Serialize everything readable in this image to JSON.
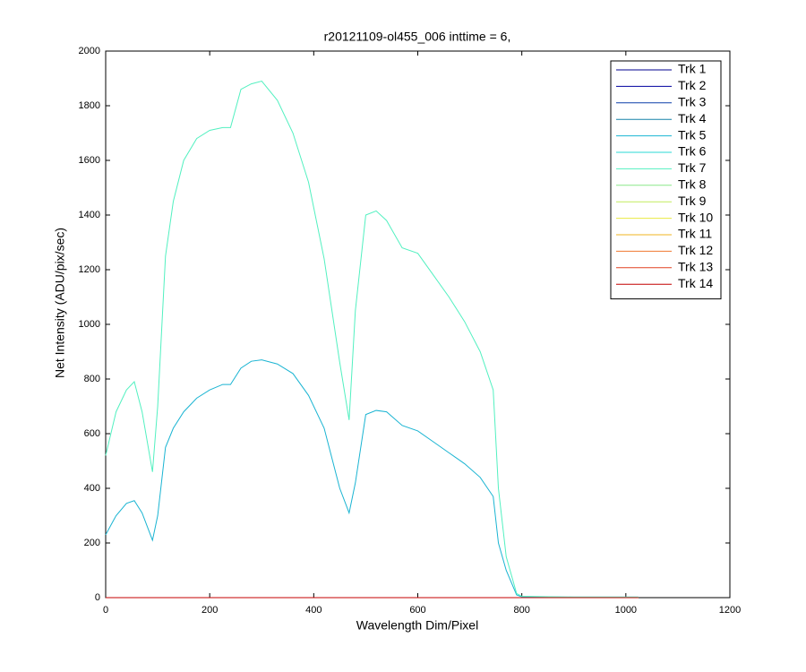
{
  "chart_data": {
    "type": "line",
    "title": "r20121109-ol455_006 inttime = 6,",
    "x_label": "Wavelength Dim/Pixel",
    "y_label": "Net Intensity (ADU/pix/sec)",
    "xlim": [
      0,
      1200
    ],
    "xticks": [
      0,
      200,
      400,
      600,
      800,
      1000,
      1200
    ],
    "ylim": [
      0,
      2000
    ],
    "yticks": [
      0,
      200,
      400,
      600,
      800,
      1000,
      1200,
      1400,
      1600,
      1800,
      2000
    ],
    "legend": "upper right",
    "x": [
      0,
      20,
      40,
      55,
      70,
      90,
      100,
      115,
      130,
      150,
      175,
      200,
      225,
      240,
      260,
      280,
      300,
      330,
      360,
      390,
      420,
      450,
      468,
      480,
      500,
      520,
      540,
      570,
      600,
      630,
      660,
      690,
      720,
      745,
      755,
      770,
      790,
      800,
      900,
      1024
    ],
    "series": [
      {
        "name": "Trk 1",
        "color": "#00008f",
        "values": [
          0,
          0,
          0,
          0,
          0,
          0,
          0,
          0,
          0,
          0,
          0,
          0,
          0,
          0,
          0,
          0,
          0,
          0,
          0,
          0,
          0,
          0,
          0,
          0,
          0,
          0,
          0,
          0,
          0,
          0,
          0,
          0,
          0,
          0,
          0,
          0,
          0,
          0,
          0,
          0
        ]
      },
      {
        "name": "Trk 2",
        "color": "#00009f",
        "values": [
          0,
          0,
          0,
          0,
          0,
          0,
          0,
          0,
          0,
          0,
          0,
          0,
          0,
          0,
          0,
          0,
          0,
          0,
          0,
          0,
          0,
          0,
          0,
          0,
          0,
          0,
          0,
          0,
          0,
          0,
          0,
          0,
          0,
          0,
          0,
          0,
          0,
          0,
          0,
          0
        ]
      },
      {
        "name": "Trk 3",
        "color": "#0a3ea8",
        "values": [
          0,
          0,
          0,
          0,
          0,
          0,
          0,
          0,
          0,
          0,
          0,
          0,
          0,
          0,
          0,
          0,
          0,
          0,
          0,
          0,
          0,
          0,
          0,
          0,
          0,
          0,
          0,
          0,
          0,
          0,
          0,
          0,
          0,
          0,
          0,
          0,
          0,
          0,
          0,
          0
        ]
      },
      {
        "name": "Trk 4",
        "color": "#1682a8",
        "values": [
          0,
          0,
          0,
          0,
          0,
          0,
          0,
          0,
          0,
          0,
          0,
          0,
          0,
          0,
          0,
          0,
          0,
          0,
          0,
          0,
          0,
          0,
          0,
          0,
          0,
          0,
          0,
          0,
          0,
          0,
          0,
          0,
          0,
          0,
          0,
          0,
          0,
          0,
          0,
          0
        ]
      },
      {
        "name": "Trk 5",
        "color": "#1ab4d2",
        "values": [
          230,
          300,
          345,
          355,
          310,
          210,
          300,
          550,
          620,
          680,
          730,
          760,
          780,
          780,
          840,
          865,
          870,
          855,
          820,
          740,
          620,
          400,
          310,
          420,
          670,
          685,
          680,
          630,
          610,
          570,
          530,
          490,
          440,
          370,
          200,
          100,
          10,
          3,
          2,
          2
        ]
      },
      {
        "name": "Trk 6",
        "color": "#2ad8d4",
        "values": [
          0,
          0,
          0,
          0,
          0,
          0,
          0,
          0,
          0,
          0,
          0,
          0,
          0,
          0,
          0,
          0,
          0,
          0,
          0,
          0,
          0,
          0,
          0,
          0,
          0,
          0,
          0,
          0,
          0,
          0,
          0,
          0,
          0,
          0,
          0,
          0,
          0,
          0,
          0,
          0
        ]
      },
      {
        "name": "Trk 7",
        "color": "#52f0c0",
        "values": [
          520,
          680,
          760,
          790,
          680,
          460,
          700,
          1250,
          1450,
          1600,
          1680,
          1710,
          1720,
          1720,
          1860,
          1880,
          1890,
          1820,
          1700,
          1520,
          1240,
          860,
          650,
          1050,
          1400,
          1415,
          1380,
          1280,
          1260,
          1180,
          1100,
          1010,
          900,
          760,
          400,
          150,
          15,
          5,
          2,
          2
        ]
      },
      {
        "name": "Trk 8",
        "color": "#8ae888",
        "values": [
          0,
          0,
          0,
          0,
          0,
          0,
          0,
          0,
          0,
          0,
          0,
          0,
          0,
          0,
          0,
          0,
          0,
          0,
          0,
          0,
          0,
          0,
          0,
          0,
          0,
          0,
          0,
          0,
          0,
          0,
          0,
          0,
          0,
          0,
          0,
          0,
          0,
          0,
          0,
          0
        ]
      },
      {
        "name": "Trk 9",
        "color": "#c2ec5c",
        "values": [
          0,
          0,
          0,
          0,
          0,
          0,
          0,
          0,
          0,
          0,
          0,
          0,
          0,
          0,
          0,
          0,
          0,
          0,
          0,
          0,
          0,
          0,
          0,
          0,
          0,
          0,
          0,
          0,
          0,
          0,
          0,
          0,
          0,
          0,
          0,
          0,
          0,
          0,
          0,
          0
        ]
      },
      {
        "name": "Trk 10",
        "color": "#eaea40",
        "values": [
          0,
          0,
          0,
          0,
          0,
          0,
          0,
          0,
          0,
          0,
          0,
          0,
          0,
          0,
          0,
          0,
          0,
          0,
          0,
          0,
          0,
          0,
          0,
          0,
          0,
          0,
          0,
          0,
          0,
          0,
          0,
          0,
          0,
          0,
          0,
          0,
          0,
          0,
          0,
          0
        ]
      },
      {
        "name": "Trk 11",
        "color": "#f0b420",
        "values": [
          0,
          0,
          0,
          0,
          0,
          0,
          0,
          0,
          0,
          0,
          0,
          0,
          0,
          0,
          0,
          0,
          0,
          0,
          0,
          0,
          0,
          0,
          0,
          0,
          0,
          0,
          0,
          0,
          0,
          0,
          0,
          0,
          0,
          0,
          0,
          0,
          0,
          0,
          0,
          0
        ]
      },
      {
        "name": "Trk 12",
        "color": "#f07830",
        "values": [
          0,
          0,
          0,
          0,
          0,
          0,
          0,
          0,
          0,
          0,
          0,
          0,
          0,
          0,
          0,
          0,
          0,
          0,
          0,
          0,
          0,
          0,
          0,
          0,
          0,
          0,
          0,
          0,
          0,
          0,
          0,
          0,
          0,
          0,
          0,
          0,
          0,
          0,
          0,
          0
        ]
      },
      {
        "name": "Trk 13",
        "color": "#e04020",
        "values": [
          0,
          0,
          0,
          0,
          0,
          0,
          0,
          0,
          0,
          0,
          0,
          0,
          0,
          0,
          0,
          0,
          0,
          0,
          0,
          0,
          0,
          0,
          0,
          0,
          0,
          0,
          0,
          0,
          0,
          0,
          0,
          0,
          0,
          0,
          0,
          0,
          0,
          0,
          0,
          0
        ]
      },
      {
        "name": "Trk 14",
        "color": "#c40000",
        "values": [
          0,
          0,
          0,
          0,
          0,
          0,
          0,
          0,
          0,
          0,
          0,
          0,
          0,
          0,
          0,
          0,
          0,
          0,
          0,
          0,
          0,
          0,
          0,
          0,
          0,
          0,
          0,
          0,
          0,
          0,
          0,
          0,
          0,
          0,
          0,
          0,
          0,
          0,
          0,
          0
        ]
      }
    ]
  }
}
